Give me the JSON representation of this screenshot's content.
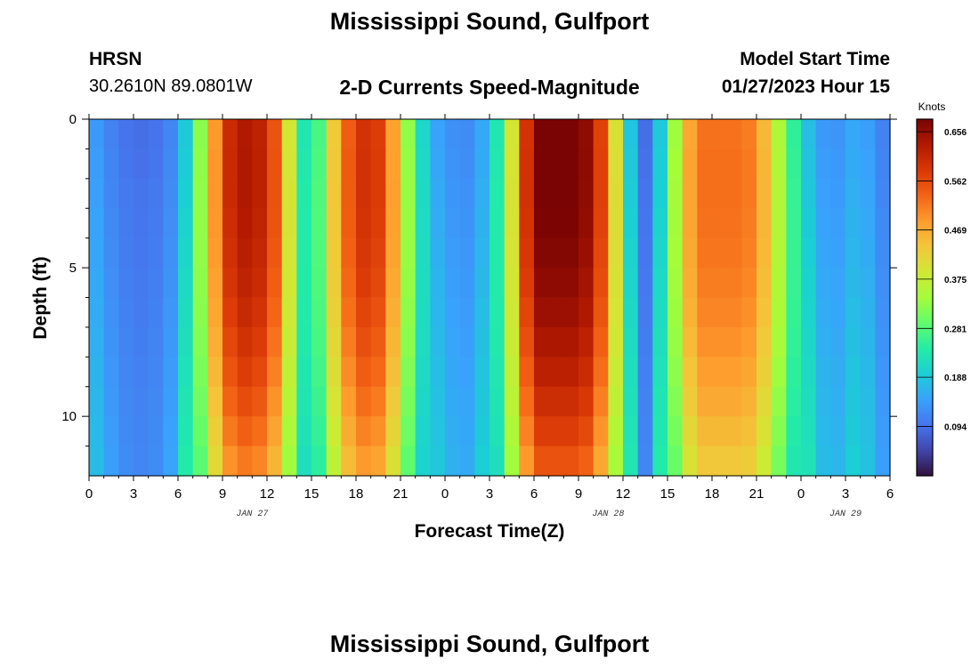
{
  "header": {
    "title": "Mississippi Sound, Gulfport",
    "station_id": "HRSN",
    "coords": "30.2610N  89.0801W",
    "subtitle": "2-D Currents Speed-Magnitude",
    "model_label": "Model Start Time",
    "model_time": "01/27/2023 Hour 15",
    "footer_title": "Mississippi Sound, Gulfport"
  },
  "chart_data": {
    "type": "heatmap",
    "title": "2-D Currents Speed-Magnitude",
    "xlabel": "Forecast Time(Z)",
    "ylabel": "Depth (ft)",
    "x_tick_labels": [
      "0",
      "3",
      "6",
      "9",
      "12",
      "15",
      "18",
      "21",
      "0",
      "3",
      "6",
      "9",
      "12",
      "15",
      "18",
      "21",
      "0",
      "3",
      "6"
    ],
    "x_range_hours": [
      0,
      54
    ],
    "date_labels": [
      {
        "label": "JAN 27",
        "hour": 11
      },
      {
        "label": "JAN 28",
        "hour": 35
      },
      {
        "label": "JAN 29",
        "hour": 51
      }
    ],
    "y_ticks": [
      0,
      5,
      10
    ],
    "y_range_ft": [
      0,
      12
    ],
    "colorbar": {
      "unit": "Knots",
      "ticks": [
        "0.656",
        "0.562",
        "0.469",
        "0.375",
        "0.281",
        "0.188",
        "0.094"
      ],
      "tick_values": [
        0.656,
        0.562,
        0.469,
        0.375,
        0.281,
        0.188,
        0.094
      ],
      "range": [
        0,
        0.68
      ],
      "colors": [
        "#30123b",
        "#4145ab",
        "#4675ed",
        "#39a2fc",
        "#1bcfd4",
        "#24eca6",
        "#61fc6c",
        "#a4fc3b",
        "#d1e834",
        "#f3c63a",
        "#fe9b2d",
        "#f36315",
        "#d93806",
        "#b11901",
        "#7a0403"
      ]
    },
    "depth_levels_ft": [
      0.5,
      1.5,
      2.5,
      3.5,
      4.5,
      5.5,
      6.5,
      7.5,
      8.5,
      9.5,
      10.5,
      11.5
    ],
    "time_hours": [
      0,
      1,
      2,
      3,
      4,
      5,
      6,
      7,
      8,
      9,
      10,
      11,
      12,
      13,
      14,
      15,
      16,
      17,
      18,
      19,
      20,
      21,
      22,
      23,
      24,
      25,
      26,
      27,
      28,
      29,
      30,
      31,
      32,
      33,
      34,
      35,
      36,
      37,
      38,
      39,
      40,
      41,
      42,
      43,
      44,
      45,
      46,
      47,
      48,
      49,
      50,
      51,
      52,
      53,
      54
    ],
    "surface_speed_knots": [
      0.15,
      0.12,
      0.1,
      0.09,
      0.09,
      0.1,
      0.13,
      0.24,
      0.4,
      0.57,
      0.63,
      0.63,
      0.6,
      0.5,
      0.28,
      0.18,
      0.36,
      0.5,
      0.58,
      0.6,
      0.55,
      0.4,
      0.25,
      0.16,
      0.13,
      0.12,
      0.12,
      0.18,
      0.28,
      0.5,
      0.68,
      0.68,
      0.68,
      0.68,
      0.64,
      0.5,
      0.3,
      0.06,
      0.12,
      0.25,
      0.42,
      0.52,
      0.52,
      0.52,
      0.52,
      0.5,
      0.4,
      0.3,
      0.2,
      0.15,
      0.12,
      0.14,
      0.16,
      0.12,
      0.1
    ]
  }
}
